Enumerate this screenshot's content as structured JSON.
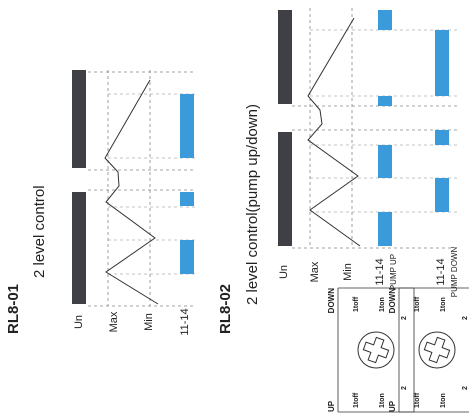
{
  "sections": [
    {
      "code": "RL8-01",
      "title": "2 level control",
      "labels": {
        "un": "Un",
        "max": "Max",
        "min": "Min",
        "out": "11-14"
      }
    },
    {
      "code": "RL8-02",
      "title": "2 level control(pump up/down)",
      "labels": {
        "un": "Un",
        "max": "Max",
        "min": "Min",
        "out_up": "11-14",
        "out_up_caption": "PUMP UP",
        "out_down": "11-14",
        "out_down_caption": "PUMP DOWN"
      }
    }
  ],
  "dials": [
    {
      "mode_up": "UP",
      "mode_down": "DOWN",
      "marks": [
        "1toff",
        "1ton",
        "2",
        "1toff",
        "1ton",
        "2"
      ]
    },
    {
      "mode_up": "UP",
      "mode_down": "DOWN",
      "marks": [
        "1toff",
        "1ton",
        "2",
        "1toff",
        "1ton",
        "2"
      ]
    }
  ],
  "colors": {
    "supply_bar": "#3f3f46",
    "relay_on": "#3b9ad9",
    "line": "#333333",
    "dashed": "#888888"
  }
}
